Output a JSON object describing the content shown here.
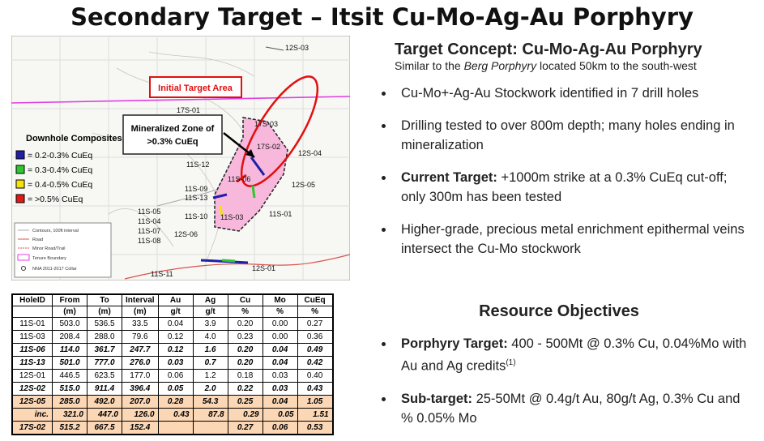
{
  "title": "Secondary Target – Itsit Cu-Mo-Ag-Au Porphyry",
  "map": {
    "holes": [
      {
        "label": "12S-03",
        "x": 0
      },
      {
        "label": "17S-01"
      },
      {
        "label": "17S-03"
      },
      {
        "label": "17S-02"
      },
      {
        "label": "12S-04"
      },
      {
        "label": "11S-12"
      },
      {
        "label": "11S-06"
      },
      {
        "label": "11S-09"
      },
      {
        "label": "11S-13"
      },
      {
        "label": "12S-05"
      },
      {
        "label": "11S-10"
      },
      {
        "label": "11S-03"
      },
      {
        "label": "11S-01"
      },
      {
        "label": "11S-05"
      },
      {
        "label": "11S-04"
      },
      {
        "label": "11S-07"
      },
      {
        "label": "11S-08"
      },
      {
        "label": "12S-06"
      },
      {
        "label": "12S-01"
      },
      {
        "label": "11S-11"
      }
    ],
    "initial_target": "Initial Target Area",
    "mineralized_zone": [
      "Mineralized Zone of",
      ">0.3% CuEq"
    ],
    "composites": {
      "title": "Downhole Composites",
      "items": [
        {
          "label": "= 0.2-0.3% CuEq",
          "color": "#1f1fa8"
        },
        {
          "label": "= 0.3-0.4% CuEq",
          "color": "#2fc72f"
        },
        {
          "label": "= 0.4-0.5% CuEq",
          "color": "#f5e20a"
        },
        {
          "label": "= >0.5% CuEq",
          "color": "#e01818"
        }
      ]
    },
    "legend": [
      "Contours, 100ft interval",
      "Road",
      "Minor Road/Trail",
      "Tenure Boundary",
      "NNA 2011-2017 Collar"
    ]
  },
  "table": {
    "header": [
      [
        "HoleID",
        "From",
        "To",
        "Interval",
        "Au",
        "Ag",
        "Cu",
        "Mo",
        "CuEq"
      ],
      [
        null,
        "(m)",
        "(m)",
        "(m)",
        "g/t",
        "g/t",
        "%",
        "%",
        "%"
      ]
    ],
    "rows": [
      [
        "11S-01",
        "503.0",
        "536.5",
        "33.5",
        "0.04",
        "3.9",
        "0.20",
        "0.00",
        "0.27"
      ],
      [
        "11S-03",
        "208.4",
        "288.0",
        "79.6",
        "0.12",
        "4.0",
        "0.23",
        "0.00",
        "0.36"
      ],
      [
        "11S-06",
        "114.0",
        "361.7",
        "247.7",
        "0.12",
        "1.6",
        "0.20",
        "0.04",
        "0.49"
      ],
      [
        "11S-13",
        "501.0",
        "777.0",
        "276.0",
        "0.03",
        "0.7",
        "0.20",
        "0.04",
        "0.42"
      ],
      [
        "12S-01",
        "446.5",
        "623.5",
        "177.0",
        "0.06",
        "1.2",
        "0.18",
        "0.03",
        "0.40"
      ],
      [
        "12S-02",
        "515.0",
        "911.4",
        "396.4",
        "0.05",
        "2.0",
        "0.22",
        "0.03",
        "0.43"
      ],
      [
        "12S-05",
        "285.0",
        "492.0",
        "207.0",
        "0.28",
        "54.3",
        "0.25",
        "0.04",
        "1.05"
      ],
      [
        "inc.",
        "321.0",
        "447.0",
        "126.0",
        "0.43",
        "87.8",
        "0.29",
        "0.05",
        "1.51"
      ],
      [
        "17S-02",
        "515.2",
        "667.5",
        "152.4",
        null,
        null,
        "0.27",
        "0.06",
        "0.53"
      ]
    ]
  },
  "concept": {
    "title": "Target Concept: Cu-Mo-Ag-Au Porphyry",
    "subtitle": [
      "Similar to the ",
      "Berg Porphyry",
      " located 50km to the south-west"
    ],
    "bullets": [
      [
        "Cu-Mo+-Ag-Au Stockwork identified in 7 drill holes"
      ],
      [
        "Drilling tested to over 800m depth; many holes ending in mineralization"
      ],
      [
        "Current Target:",
        " +1000m strike at a 0.3% CuEq cut-off; only 300m has been tested"
      ],
      [
        "Higher-grade, precious metal enrichment epithermal veins intersect the Cu-Mo stockwork"
      ]
    ]
  },
  "objectives": {
    "title": "Resource Objectives",
    "bullets": [
      [
        "Porphyry Target:",
        " 400 - 500Mt @ 0.3% Cu, 0.04%Mo with Au and Ag credits",
        "(1)"
      ],
      [
        "Sub-target:",
        " 25-50Mt @ 0.4g/t Au, 80g/t Ag, 0.3% Cu and % 0.05% Mo"
      ]
    ]
  }
}
